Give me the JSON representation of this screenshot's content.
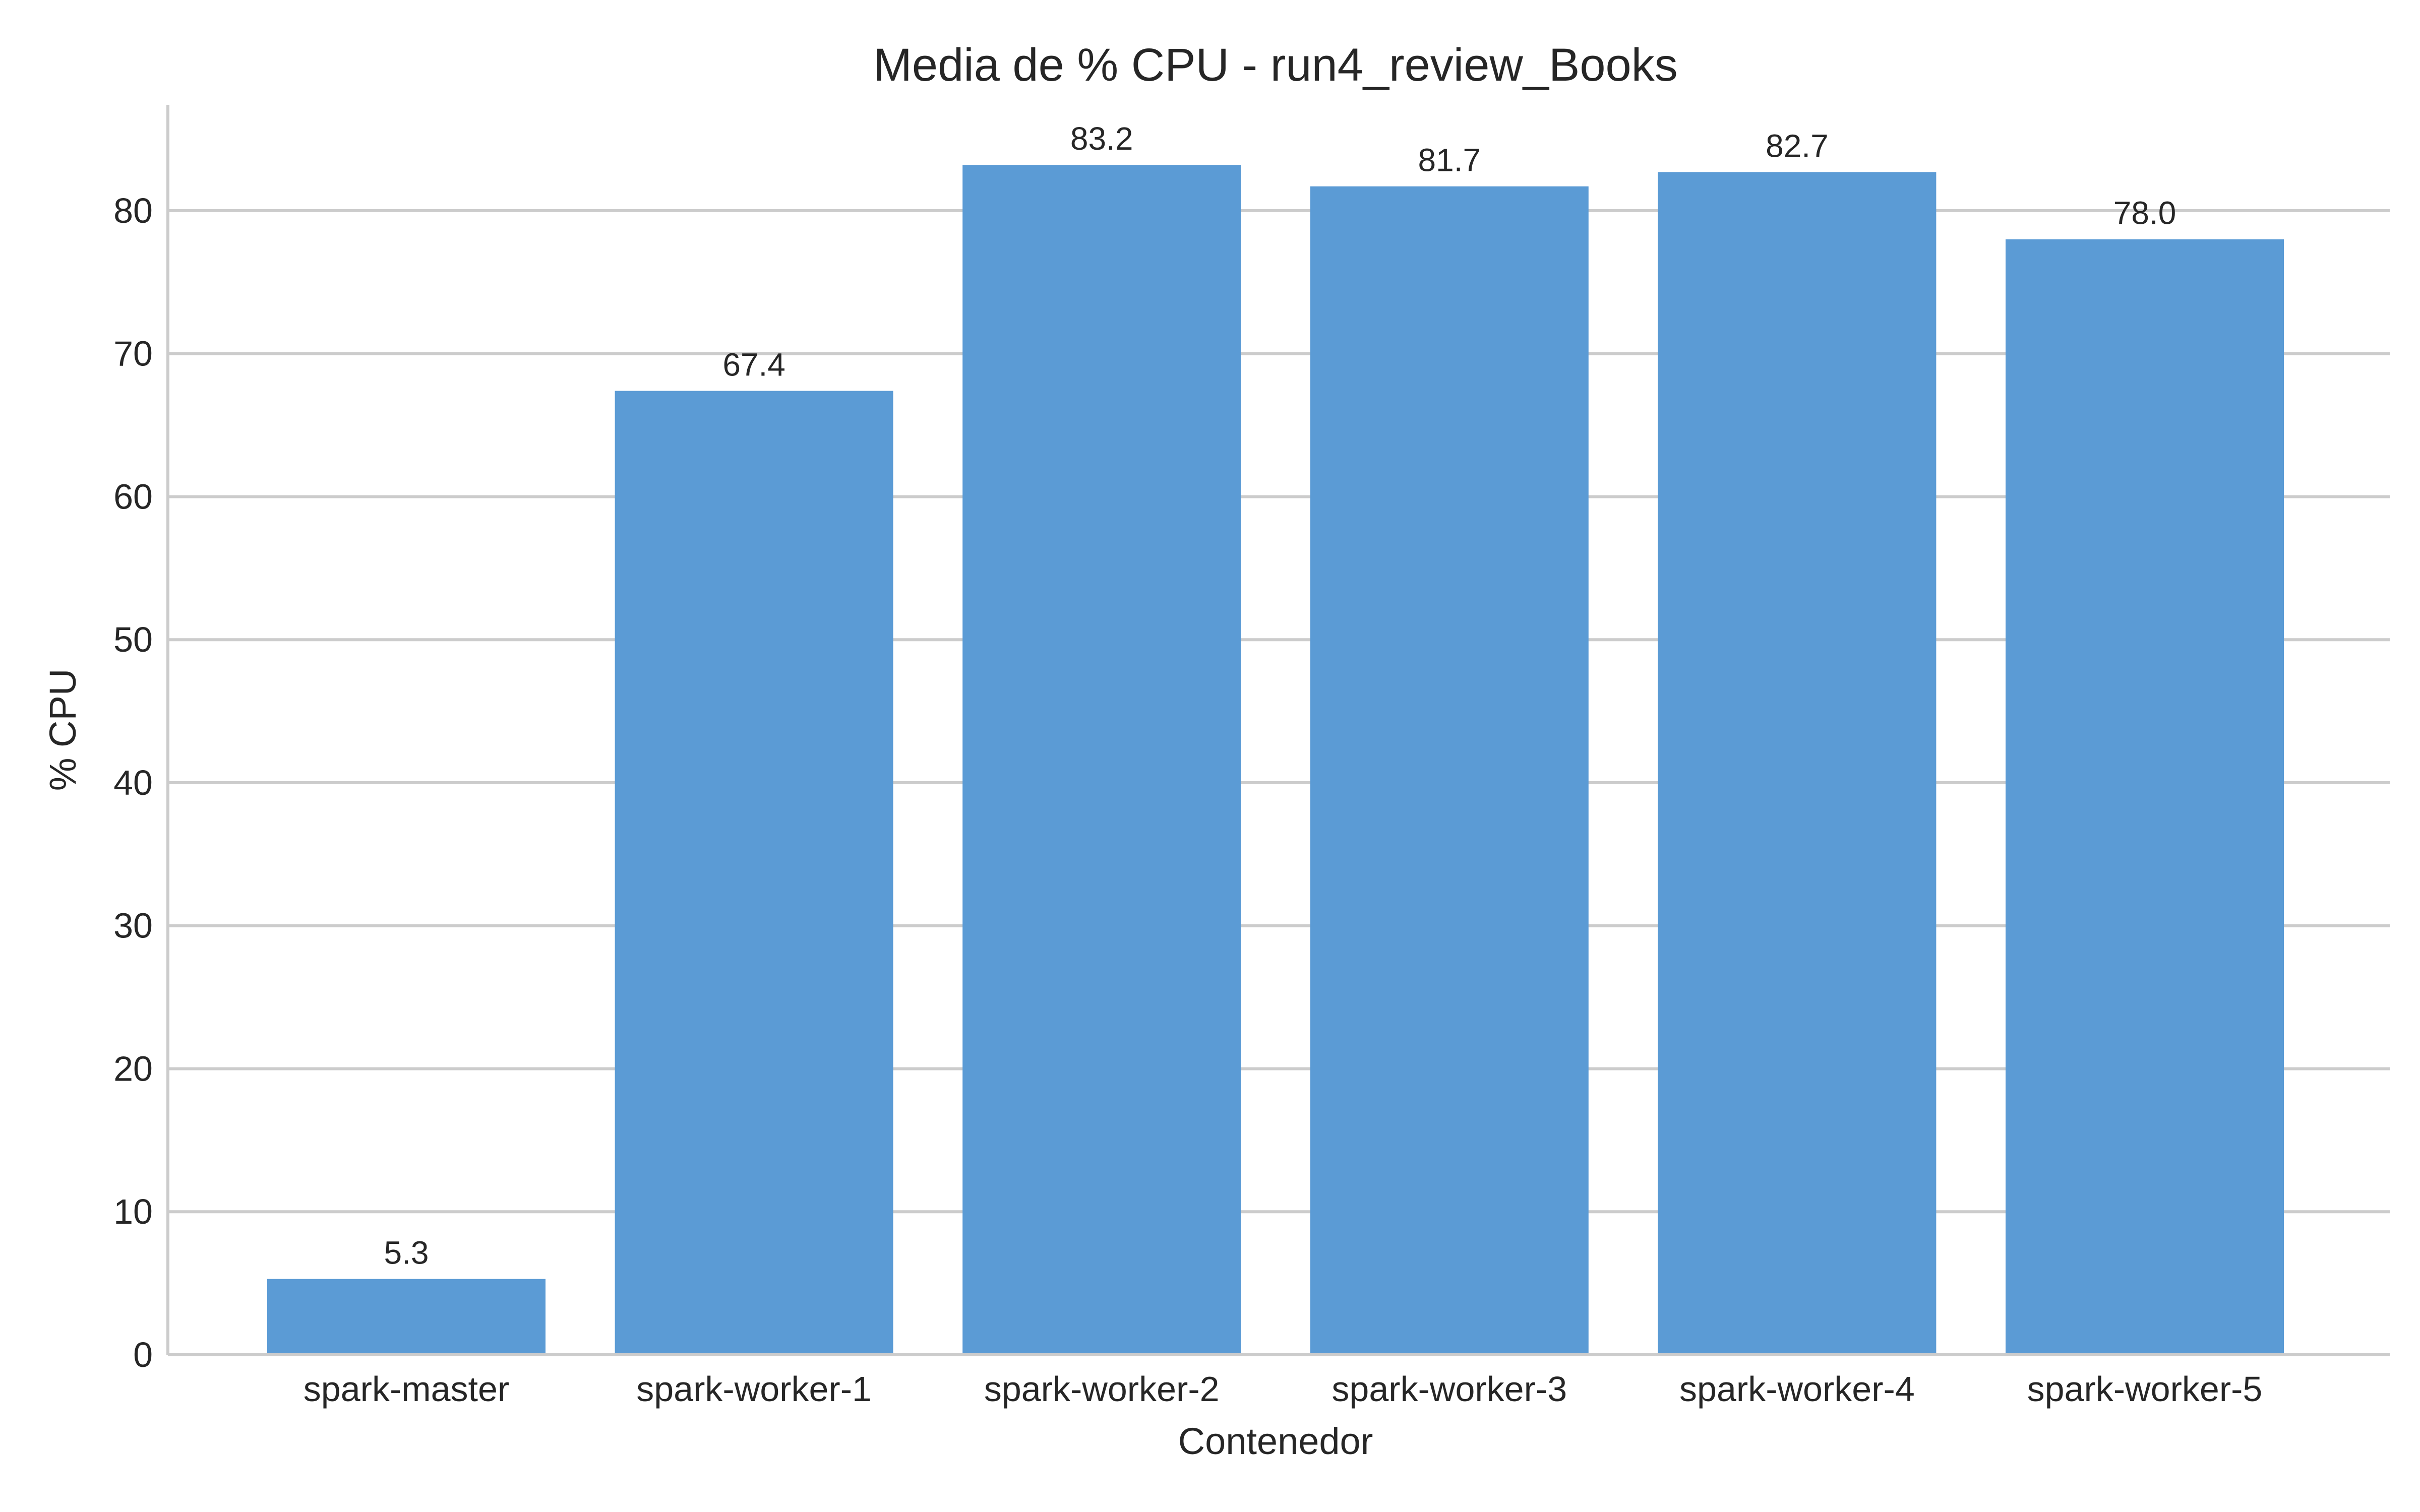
{
  "chart_data": {
    "type": "bar",
    "title": "Media de % CPU - run4_review_Books",
    "xlabel": "Contenedor",
    "ylabel": "% CPU",
    "categories": [
      "spark-master",
      "spark-worker-1",
      "spark-worker-2",
      "spark-worker-3",
      "spark-worker-4",
      "spark-worker-5"
    ],
    "values": [
      5.3,
      67.4,
      83.2,
      81.7,
      82.7,
      78.0
    ],
    "data_labels": [
      "5.3",
      "67.4",
      "83.2",
      "81.7",
      "82.7",
      "78.0"
    ],
    "ylim": [
      0,
      87.4
    ],
    "yticks": [
      0,
      10,
      20,
      30,
      40,
      50,
      60,
      70,
      80
    ],
    "grid": "horizontal",
    "bar_color": "#5b9bd5"
  }
}
